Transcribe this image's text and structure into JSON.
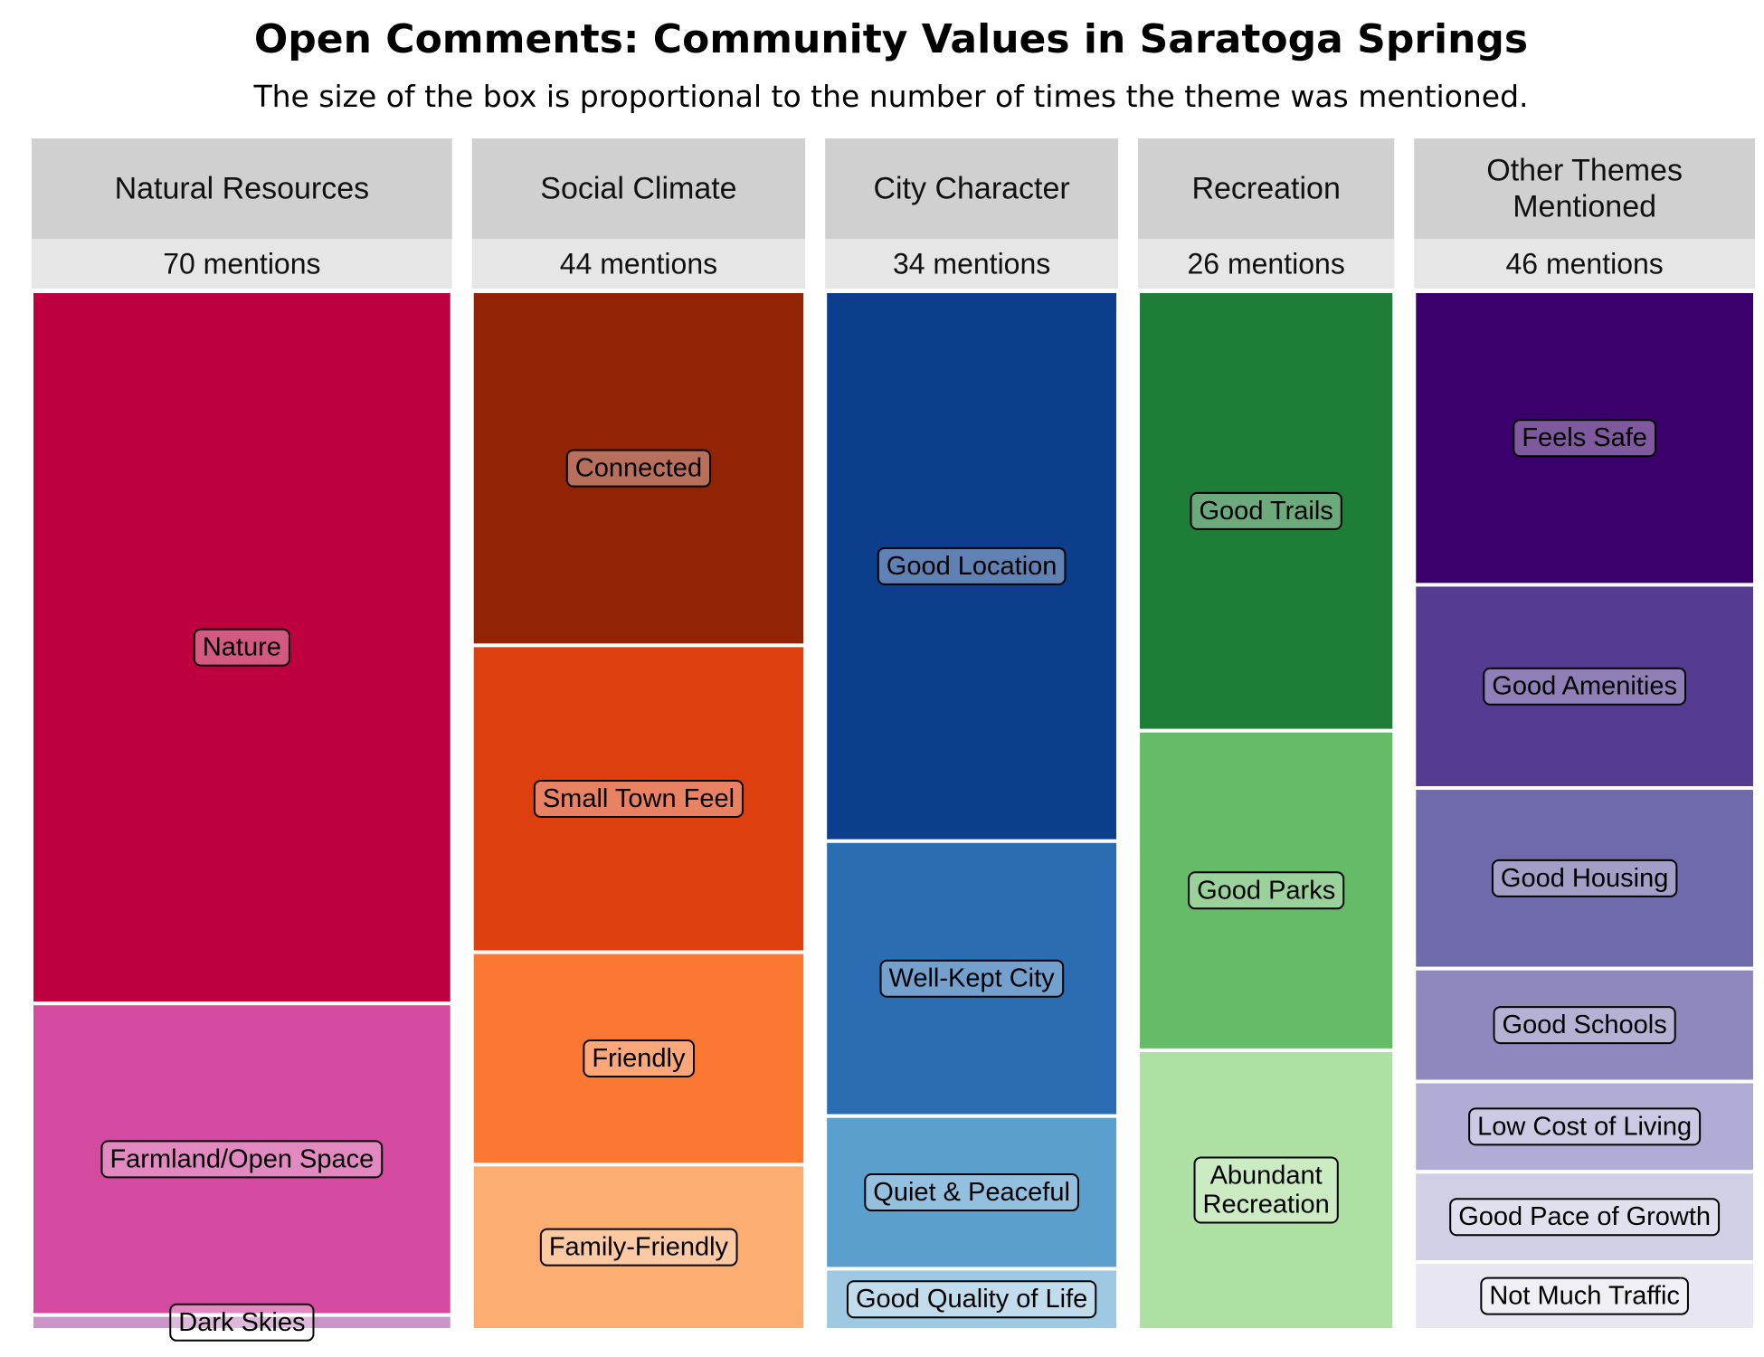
{
  "chart_data": {
    "type": "treemap",
    "title": "Open Comments: Community Values in Saratoga Springs",
    "subtitle": "The size of the box is proportional to the number of times the theme was mentioned.",
    "groups": [
      {
        "name": "Natural Resources",
        "count_label": "70 mentions",
        "total": 70,
        "items": [
          {
            "label": "Nature",
            "value": 48,
            "color": "#be0040"
          },
          {
            "label": "Farmland/Open Space",
            "value": 21,
            "color": "#d44aa0"
          },
          {
            "label": "Dark Skies",
            "value": 1,
            "color": "#c994c7"
          }
        ]
      },
      {
        "name": "Social Climate",
        "count_label": "44 mentions",
        "total": 44,
        "items": [
          {
            "label": "Connected",
            "value": 15,
            "color": "#922305"
          },
          {
            "label": "Small Town Feel",
            "value": 13,
            "color": "#dd3f0e"
          },
          {
            "label": "Friendly",
            "value": 9,
            "color": "#fb7832"
          },
          {
            "label": "Family-Friendly",
            "value": 7,
            "color": "#fbad72"
          }
        ]
      },
      {
        "name": "City Character",
        "count_label": "34 mentions",
        "total": 34,
        "items": [
          {
            "label": "Good Location",
            "value": 18,
            "color": "#0c3e8b"
          },
          {
            "label": "Well-Kept City",
            "value": 9,
            "color": "#2a6db2"
          },
          {
            "label": "Quiet & Peaceful",
            "value": 5,
            "color": "#5a9fcd"
          },
          {
            "label": "Good Quality of Life",
            "value": 2,
            "color": "#9ec9e3"
          }
        ]
      },
      {
        "name": "Recreation",
        "count_label": "26 mentions",
        "total": 26,
        "items": [
          {
            "label": "Good Trails",
            "value": 11,
            "color": "#1e7d36"
          },
          {
            "label": "Good Parks",
            "value": 8,
            "color": "#66bb66"
          },
          {
            "label": "Abundant\nRecreation",
            "value": 7,
            "color": "#afe0a3"
          }
        ]
      },
      {
        "name": "Other Themes\nMentioned",
        "count_label": "46 mentions",
        "total": 46,
        "items": [
          {
            "label": "Feels Safe",
            "value": 13,
            "color": "#3b006b"
          },
          {
            "label": "Good Amenities",
            "value": 9,
            "color": "#553b91"
          },
          {
            "label": "Good Housing",
            "value": 8,
            "color": "#6f6aab"
          },
          {
            "label": "Good Schools",
            "value": 5,
            "color": "#8e88bf"
          },
          {
            "label": "Low Cost of Living",
            "value": 4,
            "color": "#b0acd5"
          },
          {
            "label": "Good Pace of Growth",
            "value": 4,
            "color": "#d0cfe6"
          },
          {
            "label": "Not Much Traffic",
            "value": 3,
            "color": "#e8e6f1"
          }
        ]
      }
    ],
    "colors": {
      "header_bg": "#d0d0d0",
      "count_bg": "#e6e6e6",
      "divider": "#ffffff"
    }
  }
}
